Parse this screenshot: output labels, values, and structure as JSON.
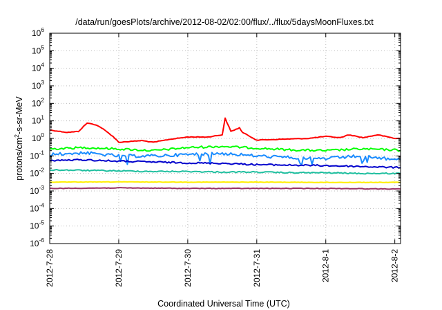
{
  "chart_data": {
    "type": "line",
    "title": "/data/run/goesPlots/archive/2012-08-02/02:00/flux/../flux/5daysMoonFluxes.txt",
    "xlabel": "Coordinated Universal Time (UTC)",
    "ylabel": {
      "pre": "protons/cm",
      "sup": "2",
      "post": "-s-sr-MeV"
    },
    "yscale": "log",
    "ylim": [
      1e-06,
      1000000.0
    ],
    "xlim": [
      "2012-07-28T00:00",
      "2012-08-02T02:00"
    ],
    "grid": true,
    "x_ticks": [
      "2012-7-28",
      "2012-7-29",
      "2012-7-30",
      "2012-7-31",
      "2012-8-1",
      "2012-8-2"
    ],
    "y_ticks": [
      {
        "base": "10",
        "exp": "-6"
      },
      {
        "base": "10",
        "exp": "-5"
      },
      {
        "base": "10",
        "exp": "-4"
      },
      {
        "base": "10",
        "exp": "-3"
      },
      {
        "base": "10",
        "exp": "-2"
      },
      {
        "base": "10",
        "exp": "-1"
      },
      {
        "base": "10",
        "exp": "0"
      },
      {
        "base": "10",
        "exp": "1"
      },
      {
        "base": "10",
        "exp": "2"
      },
      {
        "base": "10",
        "exp": "3"
      },
      {
        "base": "10",
        "exp": "4"
      },
      {
        "base": "10",
        "exp": "5"
      },
      {
        "base": "10",
        "exp": "6"
      }
    ],
    "series": [
      {
        "color": "#ff0000",
        "x": [
          "2012-07-28T00:00",
          "2012-07-28T06:00",
          "2012-07-28T10:00",
          "2012-07-28T13:00",
          "2012-07-28T16:00",
          "2012-07-28T18:00",
          "2012-07-28T22:00",
          "2012-07-29T00:00",
          "2012-07-29T08:00",
          "2012-07-29T12:00",
          "2012-07-29T18:00",
          "2012-07-30T00:00",
          "2012-07-30T07:00",
          "2012-07-30T12:00",
          "2012-07-30T13:00",
          "2012-07-30T15:00",
          "2012-07-30T18:00",
          "2012-07-30T19:00",
          "2012-07-30T22:00",
          "2012-07-31T00:00",
          "2012-07-31T09:00",
          "2012-07-31T18:00",
          "2012-08-01T00:00",
          "2012-08-01T05:00",
          "2012-08-01T08:00",
          "2012-08-01T13:00",
          "2012-08-01T18:00",
          "2012-08-02T00:00",
          "2012-08-02T02:00"
        ],
        "y": [
          3.0,
          2.2,
          2.5,
          7.5,
          6.0,
          4.0,
          1.3,
          0.6,
          0.75,
          0.6,
          0.9,
          1.2,
          1.2,
          1.6,
          14,
          2.5,
          4.0,
          2.2,
          1.2,
          0.8,
          0.9,
          1.0,
          1.3,
          1.1,
          1.6,
          1.1,
          1.6,
          1.0,
          1.0
        ]
      },
      {
        "color": "#00ff00",
        "x": [
          "2012-07-28T00:00",
          "2012-07-28T12:00",
          "2012-07-29T00:00",
          "2012-07-29T12:00",
          "2012-07-30T00:00",
          "2012-07-30T12:00",
          "2012-07-31T00:00",
          "2012-07-31T12:00",
          "2012-08-01T00:00",
          "2012-08-01T12:00",
          "2012-08-02T00:00",
          "2012-08-02T02:00"
        ],
        "y": [
          0.25,
          0.3,
          0.25,
          0.2,
          0.3,
          0.35,
          0.28,
          0.22,
          0.2,
          0.25,
          0.22,
          0.2
        ]
      },
      {
        "color": "#1a8cff",
        "x": [
          "2012-07-28T00:00",
          "2012-07-28T12:00",
          "2012-07-29T00:00",
          "2012-07-29T12:00",
          "2012-07-30T00:00",
          "2012-07-30T12:00",
          "2012-07-31T00:00",
          "2012-07-31T12:00",
          "2012-08-01T00:00",
          "2012-08-01T12:00",
          "2012-08-02T00:00",
          "2012-08-02T02:00"
        ],
        "y": [
          0.12,
          0.15,
          0.1,
          0.1,
          0.12,
          0.14,
          0.1,
          0.08,
          0.07,
          0.1,
          0.06,
          0.06
        ]
      },
      {
        "color": "#0000cc",
        "x": [
          "2012-07-28T00:00",
          "2012-07-28T12:00",
          "2012-07-29T00:00",
          "2012-07-29T12:00",
          "2012-07-30T00:00",
          "2012-07-30T12:00",
          "2012-07-31T00:00",
          "2012-07-31T12:00",
          "2012-08-01T00:00",
          "2012-08-01T12:00",
          "2012-08-02T00:00",
          "2012-08-02T02:00"
        ],
        "y": [
          0.055,
          0.06,
          0.05,
          0.045,
          0.04,
          0.038,
          0.032,
          0.03,
          0.028,
          0.025,
          0.022,
          0.022
        ]
      },
      {
        "color": "#1fbf9f",
        "x": [
          "2012-07-28T00:00",
          "2012-07-28T12:00",
          "2012-07-29T00:00",
          "2012-07-29T12:00",
          "2012-07-30T00:00",
          "2012-07-30T12:00",
          "2012-07-31T00:00",
          "2012-07-31T12:00",
          "2012-08-01T00:00",
          "2012-08-01T12:00",
          "2012-08-02T00:00",
          "2012-08-02T02:00"
        ],
        "y": [
          0.016,
          0.015,
          0.014,
          0.013,
          0.013,
          0.012,
          0.012,
          0.011,
          0.011,
          0.01,
          0.01,
          0.01
        ]
      },
      {
        "color": "#ffee00",
        "x": [
          "2012-07-28T00:00",
          "2012-07-29T00:00",
          "2012-07-30T00:00",
          "2012-07-31T00:00",
          "2012-08-01T00:00",
          "2012-08-02T00:00",
          "2012-08-02T02:00"
        ],
        "y": [
          0.0032,
          0.0033,
          0.0032,
          0.0032,
          0.0031,
          0.0031,
          0.0031
        ]
      },
      {
        "color": "#993366",
        "x": [
          "2012-07-28T00:00",
          "2012-07-29T00:00",
          "2012-07-30T00:00",
          "2012-07-31T00:00",
          "2012-08-01T00:00",
          "2012-08-02T00:00",
          "2012-08-02T02:00"
        ],
        "y": [
          0.0014,
          0.0015,
          0.0014,
          0.0014,
          0.0014,
          0.0013,
          0.0013
        ]
      }
    ]
  }
}
